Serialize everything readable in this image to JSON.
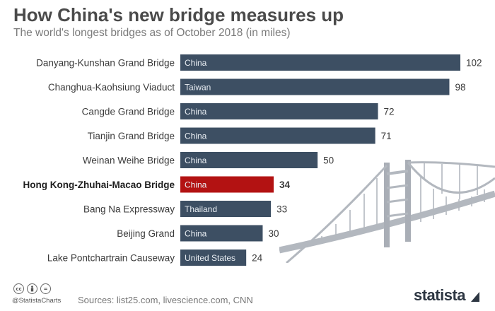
{
  "title": "How China's new bridge measures up",
  "subtitle": "The world's longest bridges as of October 2018 (in miles)",
  "chart_data": {
    "type": "bar",
    "orientation": "horizontal",
    "categories": [
      "Danyang-Kunshan Grand Bridge",
      "Changhua-Kaohsiung Viaduct",
      "Cangde Grand Bridge",
      "Tianjin Grand Bridge",
      "Weinan Weihe Bridge",
      "Hong Kong-Zhuhai-Macao Bridge",
      "Bang Na Expressway",
      "Beijing Grand",
      "Lake Pontchartrain Causeway"
    ],
    "values": [
      102,
      98,
      72,
      71,
      50,
      34,
      33,
      30,
      24
    ],
    "bar_labels": [
      "China",
      "Taiwan",
      "China",
      "China",
      "China",
      "China",
      "Thailand",
      "China",
      "United States"
    ],
    "highlighted_category": "Hong Kong-Zhuhai-Macao Bridge",
    "xlim": [
      0,
      102
    ],
    "grid": false,
    "colors": {
      "bar": "#3d4f63",
      "highlight": "#b31212"
    }
  },
  "footer": {
    "handle": "@StatistaCharts",
    "sources": "Sources: list25.com, livescience.com, CNN",
    "brand": "statista",
    "license_icons": [
      "cc-icon",
      "person-icon",
      "equals-icon"
    ]
  }
}
